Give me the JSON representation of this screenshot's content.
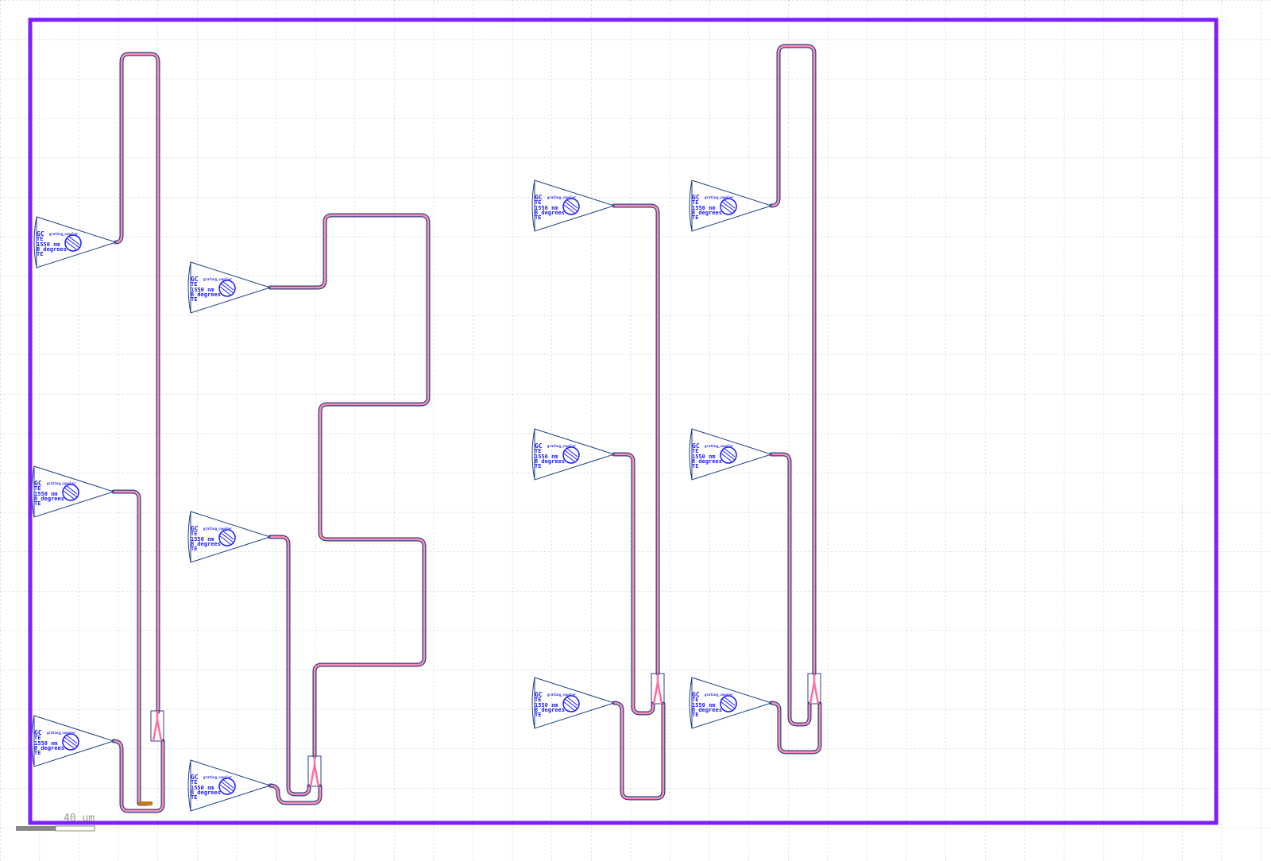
{
  "colors": {
    "background": "#ffffff",
    "grid": "#b8b8b8",
    "floorplan": "#7f1fff",
    "waveguide_core": "#ff8fb0",
    "waveguide_clad": "#2b3f8a",
    "gc_outline": "#1c3f8c",
    "gc_text": "#1a1aff",
    "splitter": "#ff6f9a",
    "terminator": "#c07a1c"
  },
  "grating_coupler": {
    "lines": [
      "GC",
      "TE",
      "1550 nm",
      "8 degrees",
      "TE"
    ],
    "label_small": "grating_coupler"
  },
  "scale_bar": {
    "label": "40 um"
  },
  "layout": {
    "cell_name": "",
    "devices": [
      {
        "name": "gc-col1-top"
      },
      {
        "name": "gc-col1-mid"
      },
      {
        "name": "gc-col1-bot"
      },
      {
        "name": "gc-col2-top"
      },
      {
        "name": "gc-col2-mid"
      },
      {
        "name": "gc-col2-bot"
      },
      {
        "name": "gc-col3-top"
      },
      {
        "name": "gc-col3-mid"
      },
      {
        "name": "gc-col3-bot"
      },
      {
        "name": "gc-col4-top"
      },
      {
        "name": "gc-col4-mid"
      },
      {
        "name": "gc-col4-bot"
      }
    ]
  }
}
